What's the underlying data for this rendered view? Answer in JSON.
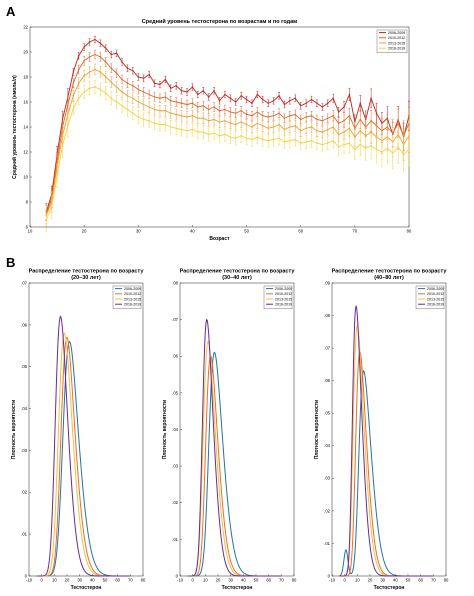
{
  "panels": {
    "a": {
      "letter": "A"
    },
    "b": {
      "letter": "B"
    }
  },
  "chart_data": [
    {
      "type": "line",
      "title": "Средний уровень тестостерона по возрастам и по годам",
      "xlabel": "Возраст",
      "ylabel": "Средний уровень тестостерона (нмоль/л)",
      "xlim": [
        10,
        80
      ],
      "ylim": [
        6,
        22
      ],
      "xticks": [
        10,
        20,
        30,
        40,
        50,
        60,
        70,
        80
      ],
      "yticks": [
        6,
        8,
        10,
        12,
        14,
        16,
        18,
        20,
        22
      ],
      "legend_position": "top-right",
      "error_bars": true,
      "x": [
        13,
        14,
        15,
        16,
        17,
        18,
        19,
        20,
        21,
        22,
        23,
        24,
        25,
        26,
        27,
        28,
        29,
        30,
        31,
        32,
        33,
        34,
        35,
        36,
        37,
        38,
        39,
        40,
        41,
        42,
        43,
        44,
        45,
        46,
        47,
        48,
        49,
        50,
        51,
        52,
        53,
        54,
        55,
        56,
        57,
        58,
        59,
        60,
        61,
        62,
        63,
        64,
        65,
        66,
        67,
        68,
        69,
        70,
        71,
        72,
        73,
        74,
        75,
        76,
        77,
        78,
        79,
        80
      ],
      "series": [
        {
          "name": "2006-2009",
          "color": "#c0231c",
          "values": [
            7.2,
            8.6,
            11.8,
            14.6,
            16.4,
            18.4,
            19.7,
            20.4,
            20.8,
            21.0,
            20.7,
            20.3,
            19.8,
            19.9,
            19.2,
            18.7,
            18.5,
            18.0,
            17.9,
            18.2,
            17.5,
            17.4,
            17.8,
            17.1,
            17.3,
            16.9,
            16.8,
            17.2,
            16.6,
            16.9,
            16.4,
            16.9,
            16.1,
            16.6,
            16.3,
            16.0,
            16.5,
            16.2,
            15.9,
            16.6,
            16.2,
            15.9,
            16.1,
            16.5,
            15.8,
            16.1,
            16.3,
            15.7,
            15.9,
            16.2,
            15.9,
            15.6,
            15.9,
            16.3,
            15.2,
            15.6,
            16.6,
            14.4,
            15.9,
            14.6,
            16.3,
            15.1,
            14.3,
            14.7,
            13.4,
            14.6,
            13.2,
            14.9
          ]
        },
        {
          "name": "2010-2012",
          "color": "#e0662a",
          "values": [
            7.0,
            8.3,
            11.2,
            14.0,
            15.8,
            17.5,
            18.6,
            19.3,
            19.6,
            19.8,
            19.6,
            19.2,
            18.7,
            18.3,
            17.8,
            17.5,
            17.3,
            17.0,
            16.8,
            16.6,
            16.4,
            16.3,
            16.4,
            16.1,
            16.0,
            15.9,
            15.8,
            15.9,
            15.6,
            15.7,
            15.4,
            15.6,
            15.3,
            15.4,
            15.2,
            15.1,
            15.3,
            15.0,
            14.9,
            15.2,
            14.9,
            14.8,
            14.9,
            15.1,
            14.7,
            14.9,
            15.0,
            14.6,
            14.8,
            14.9,
            14.6,
            14.5,
            14.7,
            14.9,
            14.3,
            14.5,
            14.9,
            13.9,
            14.6,
            14.0,
            14.5,
            14.1,
            13.7,
            14.0,
            13.5,
            14.3,
            13.3,
            14.3
          ]
        },
        {
          "name": "2013-2015",
          "color": "#f0a030",
          "values": [
            6.9,
            8.0,
            10.8,
            13.3,
            15.0,
            16.5,
            17.5,
            18.1,
            18.4,
            18.6,
            18.4,
            18.0,
            17.6,
            17.2,
            16.8,
            16.5,
            16.3,
            16.0,
            15.8,
            15.6,
            15.4,
            15.3,
            15.3,
            15.1,
            15.0,
            14.9,
            14.8,
            14.9,
            14.7,
            14.7,
            14.5,
            14.6,
            14.4,
            14.5,
            14.3,
            14.2,
            14.4,
            14.2,
            14.0,
            14.3,
            14.1,
            13.9,
            14.0,
            14.2,
            13.8,
            14.0,
            14.1,
            13.7,
            13.9,
            14.0,
            13.7,
            13.6,
            13.8,
            14.0,
            13.4,
            13.6,
            13.9,
            13.2,
            13.7,
            13.3,
            13.6,
            13.2,
            12.9,
            13.2,
            12.8,
            13.4,
            12.6,
            13.3
          ]
        },
        {
          "name": "2016-2019",
          "color": "#f4d23c",
          "values": [
            6.6,
            7.6,
            10.1,
            12.5,
            14.1,
            15.5,
            16.3,
            16.8,
            17.1,
            17.2,
            17.0,
            16.7,
            16.3,
            16.0,
            15.7,
            15.4,
            15.1,
            14.8,
            14.6,
            14.5,
            14.3,
            14.2,
            14.2,
            14.0,
            13.9,
            13.8,
            13.7,
            13.8,
            13.6,
            13.6,
            13.4,
            13.5,
            13.3,
            13.4,
            13.2,
            13.1,
            13.3,
            13.1,
            13.0,
            13.2,
            13.0,
            12.9,
            13.0,
            13.1,
            12.8,
            12.9,
            13.0,
            12.7,
            12.8,
            12.9,
            12.7,
            12.6,
            12.7,
            12.9,
            12.4,
            12.6,
            12.7,
            12.2,
            12.6,
            12.3,
            12.5,
            12.2,
            12.0,
            12.3,
            11.9,
            12.4,
            11.8,
            12.2
          ]
        }
      ]
    },
    {
      "type": "line",
      "title": "Распределение тестостерона по возрасту (20–30 лет)",
      "xlabel": "Тестостерон",
      "ylabel": "Плотность вероятности",
      "xlim": [
        -10,
        80
      ],
      "ylim": [
        0,
        0.07
      ],
      "xticks": [
        -10,
        0,
        10,
        20,
        30,
        40,
        50,
        60,
        70,
        80
      ],
      "yticks": [
        0,
        0.01,
        0.02,
        0.03,
        0.04,
        0.05,
        0.06,
        0.07
      ],
      "legend_position": "top-right",
      "series": [
        {
          "name": "2006-2009",
          "color": "#2274a5",
          "peak_x": 22,
          "peak_y": 0.056
        },
        {
          "name": "2010-2012",
          "color": "#e8702a",
          "peak_x": 20,
          "peak_y": 0.057
        },
        {
          "name": "2013-2015",
          "color": "#f2c043",
          "peak_x": 18,
          "peak_y": 0.058
        },
        {
          "name": "2016-2019",
          "color": "#6c2a8c",
          "peak_x": 15,
          "peak_y": 0.062
        }
      ]
    },
    {
      "type": "line",
      "title": "Распределение тестостерона по возрасту (30–40 лет)",
      "xlabel": "Тестостерон",
      "ylabel": "Плотность вероятности",
      "xlim": [
        -10,
        80
      ],
      "ylim": [
        0,
        0.08
      ],
      "xticks": [
        -10,
        0,
        10,
        20,
        30,
        40,
        50,
        60,
        70,
        80
      ],
      "yticks": [
        0,
        0.01,
        0.02,
        0.03,
        0.04,
        0.05,
        0.06,
        0.07,
        0.08
      ],
      "legend_position": "top-right",
      "series": [
        {
          "name": "2006-2009",
          "color": "#2274a5",
          "peak_x": 17,
          "peak_y": 0.061
        },
        {
          "name": "2010-2012",
          "color": "#e8702a",
          "peak_x": 14,
          "peak_y": 0.06
        },
        {
          "name": "2013-2015",
          "color": "#f2c043",
          "peak_x": 12,
          "peak_y": 0.064
        },
        {
          "name": "2016-2019",
          "color": "#6c2a8c",
          "peak_x": 11,
          "peak_y": 0.07
        }
      ]
    },
    {
      "type": "line",
      "title": "Распределение тестостерона по возрасту (40–80 лет)",
      "xlabel": "Тестостерон",
      "ylabel": "Плотность вероятности",
      "xlim": [
        -10,
        80
      ],
      "ylim": [
        0,
        0.09
      ],
      "xticks": [
        -10,
        0,
        10,
        20,
        30,
        40,
        50,
        60,
        70,
        80
      ],
      "yticks": [
        0,
        0.01,
        0.02,
        0.03,
        0.04,
        0.05,
        0.06,
        0.07,
        0.08,
        0.09
      ],
      "legend_position": "top-right",
      "series": [
        {
          "name": "2006-2009",
          "color": "#2274a5",
          "peak_x": 15,
          "peak_y": 0.063,
          "secondary_peak_x": 1,
          "secondary_peak_y": 0.008
        },
        {
          "name": "2010-2012",
          "color": "#e8702a",
          "peak_x": 12,
          "peak_y": 0.069
        },
        {
          "name": "2013-2015",
          "color": "#f2c043",
          "peak_x": 10,
          "peak_y": 0.077
        },
        {
          "name": "2016-2019",
          "color": "#6c2a8c",
          "peak_x": 9,
          "peak_y": 0.083
        }
      ]
    }
  ]
}
